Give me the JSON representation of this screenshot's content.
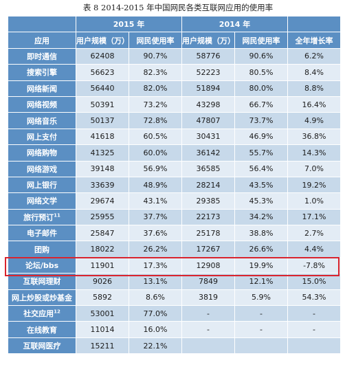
{
  "caption": "表 8   2014-2015 年中国网民各类互联网应用的使用率",
  "header": {
    "year_2015": "2015 年",
    "year_2014": "2014 年",
    "app": "应用",
    "users_2015": "用户规模（万）",
    "rate_2015": "网民使用率",
    "users_2014": "用户规模（万）",
    "rate_2014": "网民使用率",
    "growth": "全年增长率"
  },
  "rows": [
    {
      "name": "即时通信",
      "sup": "",
      "u15": "62408",
      "r15": "90.7%",
      "u14": "58776",
      "r14": "90.6%",
      "g": "6.2%"
    },
    {
      "name": "搜索引擎",
      "sup": "",
      "u15": "56623",
      "r15": "82.3%",
      "u14": "52223",
      "r14": "80.5%",
      "g": "8.4%"
    },
    {
      "name": "网络新闻",
      "sup": "",
      "u15": "56440",
      "r15": "82.0%",
      "u14": "51894",
      "r14": "80.0%",
      "g": "8.8%"
    },
    {
      "name": "网络视频",
      "sup": "",
      "u15": "50391",
      "r15": "73.2%",
      "u14": "43298",
      "r14": "66.7%",
      "g": "16.4%"
    },
    {
      "name": "网络音乐",
      "sup": "",
      "u15": "50137",
      "r15": "72.8%",
      "u14": "47807",
      "r14": "73.7%",
      "g": "4.9%"
    },
    {
      "name": "网上支付",
      "sup": "",
      "u15": "41618",
      "r15": "60.5%",
      "u14": "30431",
      "r14": "46.9%",
      "g": "36.8%"
    },
    {
      "name": "网络购物",
      "sup": "",
      "u15": "41325",
      "r15": "60.0%",
      "u14": "36142",
      "r14": "55.7%",
      "g": "14.3%"
    },
    {
      "name": "网络游戏",
      "sup": "",
      "u15": "39148",
      "r15": "56.9%",
      "u14": "36585",
      "r14": "56.4%",
      "g": "7.0%"
    },
    {
      "name": "网上银行",
      "sup": "",
      "u15": "33639",
      "r15": "48.9%",
      "u14": "28214",
      "r14": "43.5%",
      "g": "19.2%"
    },
    {
      "name": "网络文学",
      "sup": "",
      "u15": "29674",
      "r15": "43.1%",
      "u14": "29385",
      "r14": "45.3%",
      "g": "1.0%"
    },
    {
      "name": "旅行预订",
      "sup": "11",
      "u15": "25955",
      "r15": "37.7%",
      "u14": "22173",
      "r14": "34.2%",
      "g": "17.1%"
    },
    {
      "name": "电子邮件",
      "sup": "",
      "u15": "25847",
      "r15": "37.6%",
      "u14": "25178",
      "r14": "38.8%",
      "g": "2.7%"
    },
    {
      "name": "团购",
      "sup": "",
      "u15": "18022",
      "r15": "26.2%",
      "u14": "17267",
      "r14": "26.6%",
      "g": "4.4%"
    },
    {
      "name": "论坛/bbs",
      "sup": "",
      "u15": "11901",
      "r15": "17.3%",
      "u14": "12908",
      "r14": "19.9%",
      "g": "-7.8%"
    },
    {
      "name": "互联网理财",
      "sup": "",
      "u15": "9026",
      "r15": "13.1%",
      "u14": "7849",
      "r14": "12.1%",
      "g": "15.0%"
    },
    {
      "name": "网上炒股或炒基金",
      "sup": "",
      "u15": "5892",
      "r15": "8.6%",
      "u14": "3819",
      "r14": "5.9%",
      "g": "54.3%"
    },
    {
      "name": "社交应用",
      "sup": "12",
      "u15": "53001",
      "r15": "77.0%",
      "u14": "-",
      "r14": "-",
      "g": "-"
    },
    {
      "name": "在线教育",
      "sup": "",
      "u15": "11014",
      "r15": "16.0%",
      "u14": "-",
      "r14": "-",
      "g": "-"
    },
    {
      "name": "互联网医疗",
      "sup": "",
      "u15": "15211",
      "r15": "22.1%",
      "u14": "",
      "r14": "",
      "g": ""
    }
  ]
}
